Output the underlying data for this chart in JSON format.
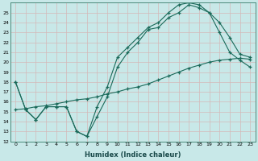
{
  "bg_color": "#c8e8e8",
  "grid_color": "#b0d0d0",
  "line_color": "#1a6a5a",
  "xlabel": "Humidex (Indice chaleur)",
  "xlim": [
    -0.5,
    23.5
  ],
  "ylim": [
    12,
    26
  ],
  "xticks": [
    0,
    1,
    2,
    3,
    4,
    5,
    6,
    7,
    8,
    9,
    10,
    11,
    12,
    13,
    14,
    15,
    16,
    17,
    18,
    19,
    20,
    21,
    22,
    23
  ],
  "yticks": [
    12,
    13,
    14,
    15,
    16,
    17,
    18,
    19,
    20,
    21,
    22,
    23,
    24,
    25
  ],
  "line1_x": [
    0,
    1,
    2,
    3,
    4,
    5,
    6,
    7,
    8,
    9,
    10,
    11,
    12,
    13,
    14,
    15,
    16,
    17,
    18,
    19,
    20,
    21,
    22,
    23
  ],
  "line1_y": [
    18.0,
    15.2,
    14.2,
    15.5,
    15.5,
    15.5,
    13.0,
    12.5,
    14.5,
    16.5,
    19.5,
    21.0,
    22.0,
    23.3,
    23.5,
    24.5,
    25.0,
    25.8,
    25.5,
    25.0,
    24.0,
    22.5,
    20.8,
    20.5
  ],
  "line2_x": [
    0,
    1,
    2,
    3,
    4,
    5,
    6,
    7,
    8,
    9,
    10,
    11,
    12,
    13,
    14,
    15,
    16,
    17,
    18,
    19,
    20,
    21,
    22,
    23
  ],
  "line2_y": [
    18.0,
    15.2,
    14.2,
    15.5,
    15.5,
    15.5,
    13.0,
    12.5,
    15.5,
    17.5,
    20.5,
    21.5,
    22.5,
    23.5,
    24.0,
    25.0,
    25.8,
    26.0,
    25.8,
    25.0,
    23.0,
    21.0,
    20.2,
    19.5
  ],
  "line3_x": [
    0,
    1,
    2,
    3,
    4,
    5,
    6,
    7,
    8,
    9,
    10,
    11,
    12,
    13,
    14,
    15,
    16,
    17,
    18,
    19,
    20,
    21,
    22,
    23
  ],
  "line3_y": [
    15.2,
    15.3,
    15.5,
    15.6,
    15.8,
    16.0,
    16.2,
    16.3,
    16.5,
    16.8,
    17.0,
    17.3,
    17.5,
    17.8,
    18.2,
    18.6,
    19.0,
    19.4,
    19.7,
    20.0,
    20.2,
    20.3,
    20.4,
    20.3
  ]
}
